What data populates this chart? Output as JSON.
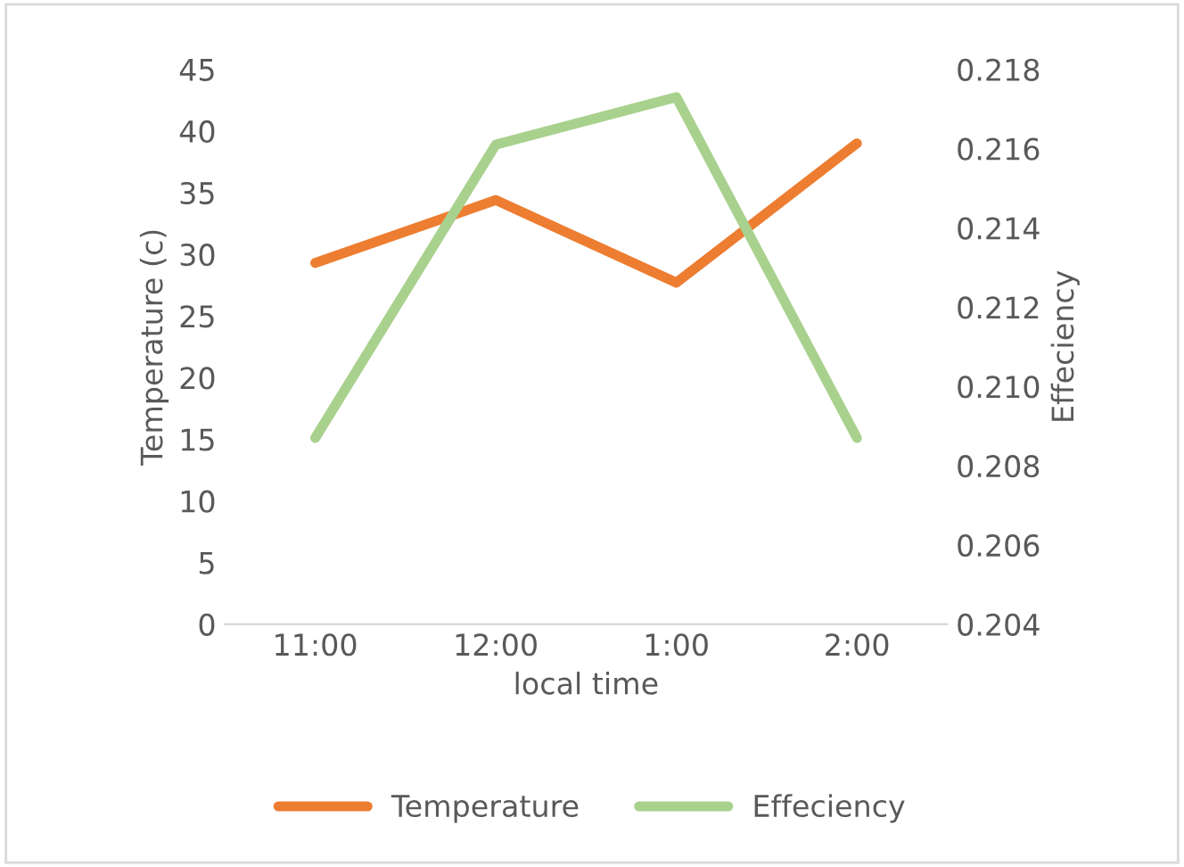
{
  "chart_data": {
    "type": "line",
    "xlabel": "local time",
    "ylabel": "Temperature (c)",
    "y2label": "Effeciency",
    "categories": [
      "11:00",
      "12:00",
      "1:00",
      "2:00"
    ],
    "series": [
      {
        "name": "Temperature",
        "color": "#ed7d31",
        "values": [
          29.3,
          34.4,
          27.7,
          39.0
        ]
      },
      {
        "name": "Effeciency",
        "color": "#a9d18e",
        "values": [
          0.2087,
          0.2161,
          0.2173,
          0.2087
        ],
        "axis": "y2"
      }
    ],
    "ylim": [
      0,
      45
    ],
    "yticks": [
      0,
      5,
      10,
      15,
      20,
      25,
      30,
      35,
      40,
      45
    ],
    "y2lim": [
      0.204,
      0.218
    ],
    "y2ticks": [
      {
        "value": 0.204,
        "label": "0.204"
      },
      {
        "value": 0.206,
        "label": "0.206"
      },
      {
        "value": 0.208,
        "label": "0.208"
      },
      {
        "value": 0.21,
        "label": "0.210"
      },
      {
        "value": 0.212,
        "label": "0.212"
      },
      {
        "value": 0.214,
        "label": "0.214"
      },
      {
        "value": 0.216,
        "label": "0.216"
      },
      {
        "value": 0.218,
        "label": "0.218"
      }
    ],
    "legend": "bottom",
    "grid": false,
    "marker": "none",
    "line_style": "solid"
  }
}
